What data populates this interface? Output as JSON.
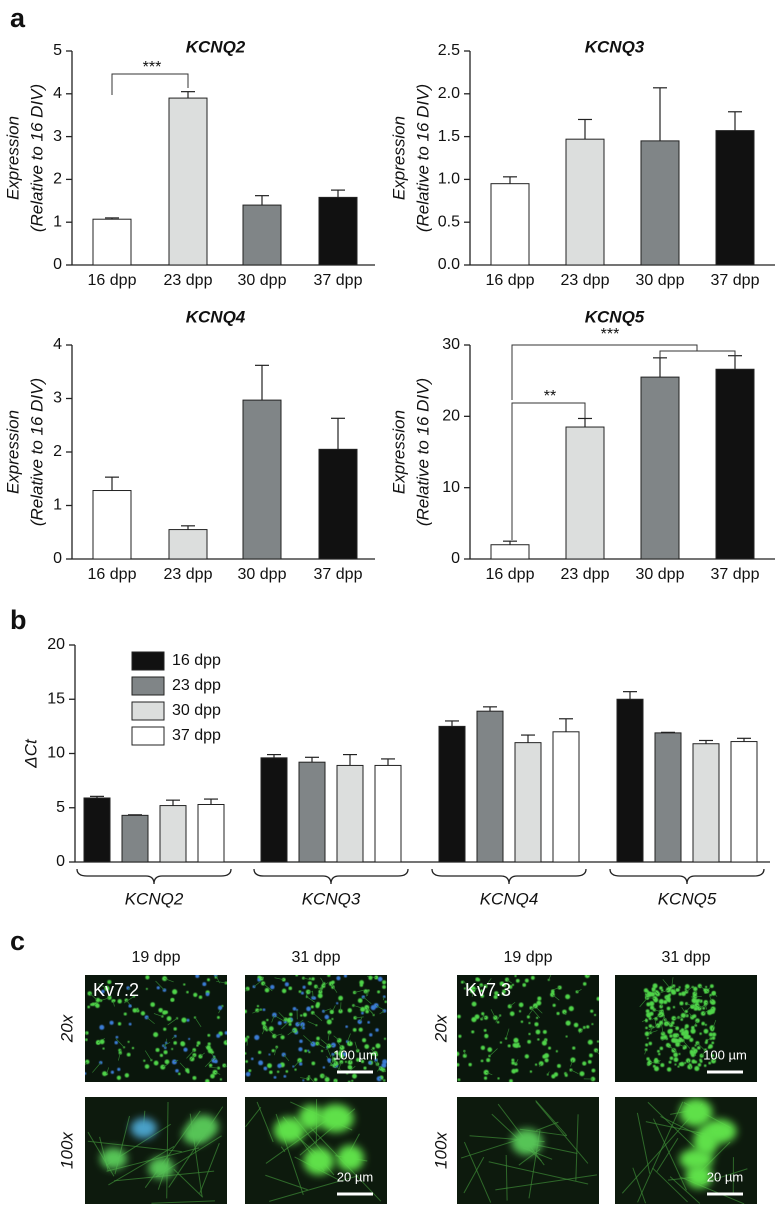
{
  "panel_labels": [
    "a",
    "b",
    "c"
  ],
  "chart_data": [
    {
      "type": "bar",
      "title": "KCNQ2",
      "ylabel": [
        "Expression",
        "(Relative to 16 DIV)"
      ],
      "categories": [
        "16 dpp",
        "23 dpp",
        "30 dpp",
        "37 dpp"
      ],
      "values": [
        1.07,
        3.9,
        1.4,
        1.58
      ],
      "errors": [
        0.03,
        0.15,
        0.22,
        0.17
      ],
      "colors": [
        "#ffffff",
        "#dcdedd",
        "#808587",
        "#111111"
      ],
      "ylim": [
        0,
        5
      ],
      "yticks": [
        0,
        1,
        2,
        3,
        4,
        5
      ],
      "annotations": [
        "***"
      ]
    },
    {
      "type": "bar",
      "title": "KCNQ3",
      "ylabel": [
        "Expression",
        "(Relative to 16 DIV)"
      ],
      "categories": [
        "16 dpp",
        "23 dpp",
        "30 dpp",
        "37 dpp"
      ],
      "values": [
        0.95,
        1.47,
        1.45,
        1.57
      ],
      "errors": [
        0.08,
        0.23,
        0.62,
        0.22
      ],
      "colors": [
        "#ffffff",
        "#dcdedd",
        "#808587",
        "#111111"
      ],
      "ylim": [
        0,
        2.5
      ],
      "yticks": [
        {
          "value": 0,
          "label": "0.0"
        },
        0.5,
        {
          "value": 1,
          "label": "1.0"
        },
        1.5,
        {
          "value": 2,
          "label": "2.0"
        },
        2.5
      ],
      "annotations": []
    },
    {
      "type": "bar",
      "title": "KCNQ4",
      "ylabel": [
        "Expression",
        "(Relative to 16 DIV)"
      ],
      "categories": [
        "16 dpp",
        "23 dpp",
        "30 dpp",
        "37 dpp"
      ],
      "values": [
        1.28,
        0.55,
        2.97,
        2.05
      ],
      "errors": [
        0.25,
        0.07,
        0.65,
        0.58
      ],
      "colors": [
        "#ffffff",
        "#dcdedd",
        "#808587",
        "#111111"
      ],
      "ylim": [
        0,
        4
      ],
      "yticks": [
        0,
        1,
        2,
        3,
        4
      ],
      "annotations": []
    },
    {
      "type": "bar",
      "title": "KCNQ5",
      "ylabel": [
        "Expression",
        "(Relative to 16 DIV)"
      ],
      "categories": [
        "16 dpp",
        "23 dpp",
        "30 dpp",
        "37 dpp"
      ],
      "values": [
        2.0,
        18.5,
        25.5,
        26.6
      ],
      "errors": [
        0.5,
        1.2,
        2.7,
        1.9
      ],
      "colors": [
        "#ffffff",
        "#dcdedd",
        "#808587",
        "#111111"
      ],
      "ylim": [
        0,
        30
      ],
      "yticks": [
        0,
        10,
        20,
        30
      ],
      "annotations": [
        "**",
        "***"
      ]
    },
    {
      "type": "bar",
      "ylabel": [
        "ΔCt"
      ],
      "categories": [
        "KCNQ2",
        "KCNQ3",
        "KCNQ4",
        "KCNQ5"
      ],
      "series": [
        {
          "name": "16 dpp",
          "color": "#111111",
          "values": [
            5.9,
            9.6,
            12.5,
            15.0
          ],
          "errors": [
            0.15,
            0.3,
            0.5,
            0.7
          ]
        },
        {
          "name": "23 dpp",
          "color": "#808587",
          "values": [
            4.3,
            9.2,
            13.9,
            11.9
          ],
          "errors": [
            0.05,
            0.45,
            0.4,
            0.05
          ]
        },
        {
          "name": "30 dpp",
          "color": "#dcdedd",
          "values": [
            5.2,
            8.9,
            11.0,
            10.9
          ],
          "errors": [
            0.5,
            1.0,
            0.7,
            0.3
          ]
        },
        {
          "name": "37 dpp",
          "color": "#ffffff",
          "values": [
            5.3,
            8.9,
            12.0,
            11.1
          ],
          "errors": [
            0.5,
            0.6,
            1.2,
            0.3
          ]
        }
      ],
      "ylim": [
        0,
        20
      ],
      "yticks": [
        0,
        5,
        10,
        15,
        20
      ]
    }
  ],
  "panel_c": [
    {
      "marker": "Kv7.2",
      "columns": [
        "19 dpp",
        "31 dpp"
      ],
      "rows": [
        "20x",
        "100x"
      ],
      "scale_bars": [
        "100 µm",
        "20 µm"
      ]
    },
    {
      "marker": "Kv7.3",
      "columns": [
        "19 dpp",
        "31 dpp"
      ],
      "rows": [
        "20x",
        "100x"
      ],
      "scale_bars": [
        "100 µm",
        "20 µm"
      ]
    }
  ]
}
